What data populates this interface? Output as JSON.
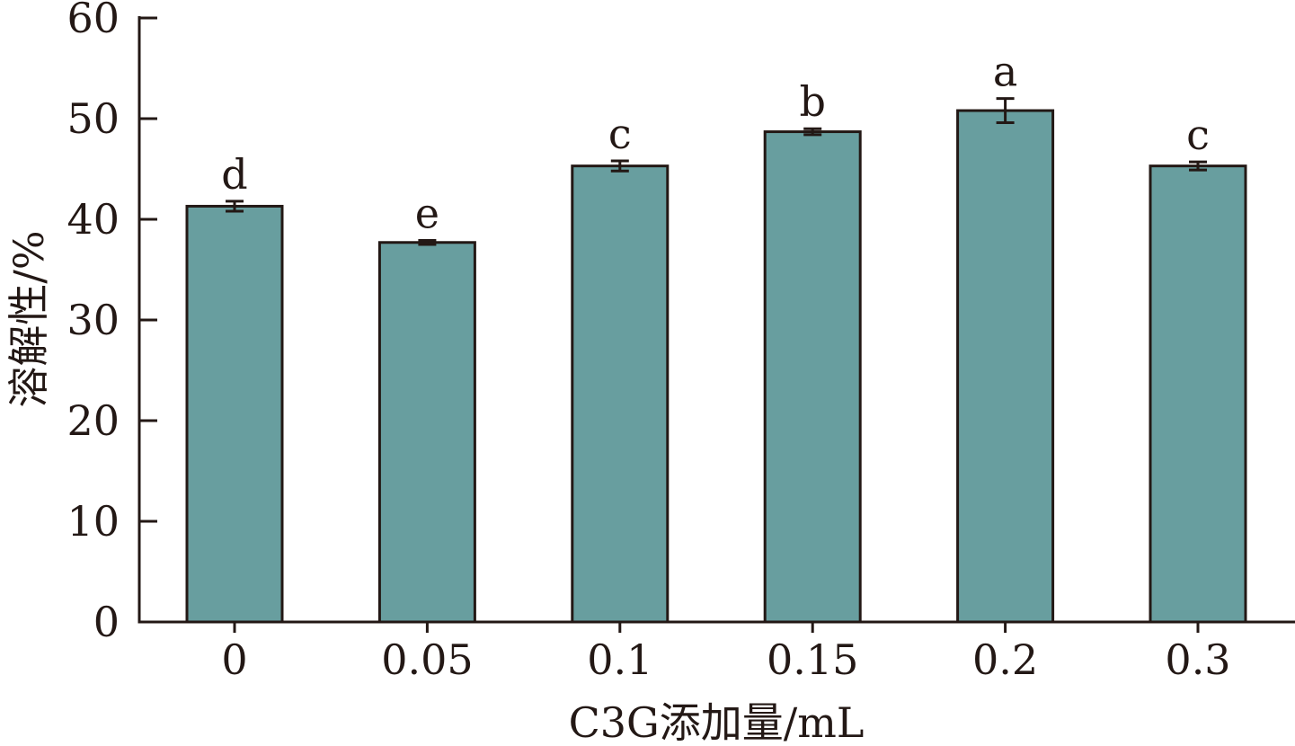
{
  "chart_data": {
    "type": "bar",
    "categories": [
      "0",
      "0.05",
      "0.1",
      "0.15",
      "0.2",
      "0.3"
    ],
    "values": [
      41.3,
      37.7,
      45.3,
      48.7,
      50.8,
      45.3
    ],
    "errors": [
      0.5,
      0.2,
      0.5,
      0.3,
      1.2,
      0.4
    ],
    "significance_letters": [
      "d",
      "e",
      "c",
      "b",
      "a",
      "c"
    ],
    "xlabel": "C3G添加量/mL",
    "ylabel": "溶解性/%",
    "ylim": [
      0,
      60
    ],
    "yticks": [
      0,
      10,
      20,
      30,
      40,
      50,
      60
    ],
    "bar_color": "#689e9f",
    "axis_color": "#231815",
    "grid": false
  }
}
